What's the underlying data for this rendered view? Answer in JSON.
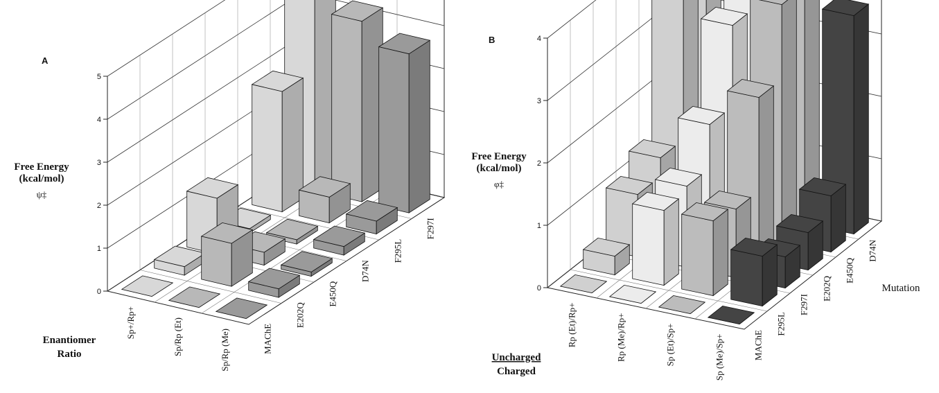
{
  "chart_data": [
    {
      "type": "bar3d",
      "panel": "A",
      "ylabel": [
        "Free Energy",
        "(kcal/mol)"
      ],
      "ysymbol": "ψ‡",
      "row_label": [
        "Enantiomer",
        "Ratio"
      ],
      "categories": [
        "MAChE",
        "E202Q",
        "E450Q",
        "D74N",
        "F295L",
        "F297I"
      ],
      "series": [
        {
          "name": "Sp+/Rp+",
          "color": "#d8d8d8",
          "values": [
            0,
            0.2,
            1.3,
            0.1,
            2.8,
            4.9
          ]
        },
        {
          "name": "Sp/Rp (Et)",
          "color": "#b8b8b8",
          "values": [
            0,
            1.0,
            0.3,
            0.1,
            0.6,
            4.2
          ]
        },
        {
          "name": "Sp/Rp (Me)",
          "color": "#9a9a9a",
          "values": [
            0,
            0.2,
            0.1,
            0.2,
            0.3,
            3.7
          ]
        }
      ],
      "ylim": [
        0,
        5
      ],
      "yticks": [
        0,
        1,
        2,
        3,
        4,
        5
      ]
    },
    {
      "type": "bar3d",
      "panel": "B",
      "ylabel": [
        "Free Energy",
        "(kcal/mol)"
      ],
      "ysymbol": "φ‡",
      "row_label": [
        "Uncharged",
        "Charged"
      ],
      "xlabel": "Mutation",
      "categories": [
        "MAChE",
        "F295L",
        "F297I",
        "E202Q",
        "E450Q",
        "D74N"
      ],
      "series": [
        {
          "name": "Rp (Et)/Rp+",
          "color": "#d0d0d0",
          "values": [
            0,
            0.3,
            1.0,
            1.3,
            3.6,
            3.9
          ]
        },
        {
          "name": "Rp (Me)/Rp+",
          "color": "#ececec",
          "values": [
            0,
            1.2,
            1.3,
            2.0,
            3.3,
            3.9
          ]
        },
        {
          "name": "Sp (Et)/Sp+",
          "color": "#bcbcbc",
          "values": [
            0,
            1.2,
            1.1,
            2.6,
            3.8,
            3.7
          ]
        },
        {
          "name": "Sp (Me)/Sp+",
          "color": "#444444",
          "values": [
            0,
            0.8,
            0.5,
            0.6,
            0.9,
            3.5
          ]
        }
      ],
      "ylim": [
        0,
        4
      ],
      "yticks": [
        0,
        1,
        2,
        3,
        4
      ]
    }
  ]
}
